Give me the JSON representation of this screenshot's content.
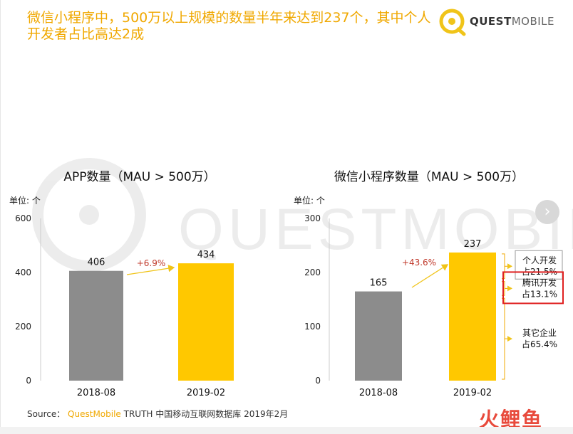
{
  "headline": "微信小程序中，500万以上规模的数量半年来达到237个，其中个人开发者占比高达2成",
  "logo": {
    "text_bold": "QUEST",
    "text_light": "MOBILE"
  },
  "source": {
    "prefix": "Source：",
    "brand": "QuestMobile",
    "rest": "TRUTH 中国移动互联网数据库 2019年2月"
  },
  "watermark": "QUESTMOBILE",
  "corner_logo": "火鲤鱼",
  "colors": {
    "gray_bar": "#8c8c8c",
    "yellow_bar": "#ffc800",
    "growth_text": "#c0392b",
    "accent": "#f0a800",
    "highlight": "#e02020"
  },
  "chart_data": [
    {
      "type": "bar",
      "title": "APP数量（MAU > 500万）",
      "unit_label": "单位: 个",
      "categories": [
        "2018-08",
        "2019-02"
      ],
      "values": [
        406,
        434
      ],
      "ylim": [
        0,
        600
      ],
      "yticks": [
        0,
        200,
        400,
        600
      ],
      "growth_label": "+6.9%"
    },
    {
      "type": "bar",
      "title": "微信小程序数量（MAU > 500万）",
      "unit_label": "单位: 个",
      "categories": [
        "2018-08",
        "2019-02"
      ],
      "values": [
        165,
        237
      ],
      "ylim": [
        0,
        300
      ],
      "yticks": [
        0,
        100,
        200,
        300
      ],
      "growth_label": "+43.6%",
      "breakdown": [
        {
          "label": "个人开发",
          "share": "占21.5%",
          "fraction": 0.215
        },
        {
          "label": "腾讯开发",
          "share": "占13.1%",
          "fraction": 0.131,
          "highlighted": true
        },
        {
          "label": "其它企业",
          "share": "占65.4%",
          "fraction": 0.654
        }
      ]
    }
  ]
}
